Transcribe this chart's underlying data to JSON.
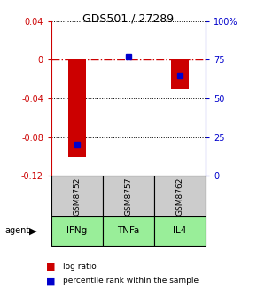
{
  "title": "GDS501 / 27289",
  "categories": [
    "GSM8752",
    "GSM8757",
    "GSM8762"
  ],
  "agents": [
    "IFNg",
    "TNFa",
    "IL4"
  ],
  "log_ratios": [
    -0.101,
    0.001,
    -0.03
  ],
  "percentile_ranks": [
    0.2,
    0.77,
    0.65
  ],
  "ylim_left": [
    -0.12,
    0.04
  ],
  "yticks_left": [
    -0.12,
    -0.08,
    -0.04,
    0.0,
    0.04
  ],
  "ytick_labels_left": [
    "-0.12",
    "-0.08",
    "-0.04",
    "0",
    "0.04"
  ],
  "yticks_right": [
    0.0,
    0.25,
    0.5,
    0.75,
    1.0
  ],
  "ytick_labels_right": [
    "0",
    "25",
    "50",
    "75",
    "100%"
  ],
  "bar_color": "#cc0000",
  "marker_color": "#0000cc",
  "sample_box_color": "#cccccc",
  "agent_green": "#99ee99",
  "legend_log_ratio": "log ratio",
  "legend_percentile": "percentile rank within the sample",
  "zero_line_color": "#cc0000",
  "bar_width": 0.35
}
